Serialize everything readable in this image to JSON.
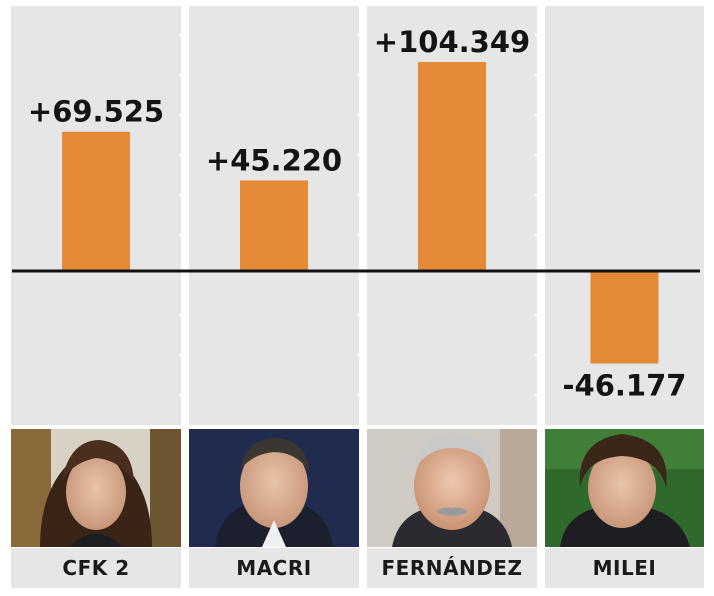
{
  "chart_data": {
    "type": "bar",
    "categories": [
      "CFK 2",
      "MACRI",
      "FERNÁNDEZ",
      "MILEI"
    ],
    "values": [
      69525,
      45220,
      104349,
      -46177
    ],
    "value_labels": [
      "+69.525",
      "+45.220",
      "+104.349",
      "-46.177"
    ],
    "title": "",
    "xlabel": "",
    "ylabel": "",
    "ylim": [
      -70000,
      120000
    ],
    "grid": false,
    "legend": "none",
    "photos": [
      "cfk-portrait",
      "macri-portrait",
      "fernandez-portrait",
      "milei-portrait"
    ],
    "colors": {
      "bar": "#e48a37",
      "column_background": "#e6e6e6",
      "zero_line": "#111111",
      "text": "#141414"
    }
  }
}
